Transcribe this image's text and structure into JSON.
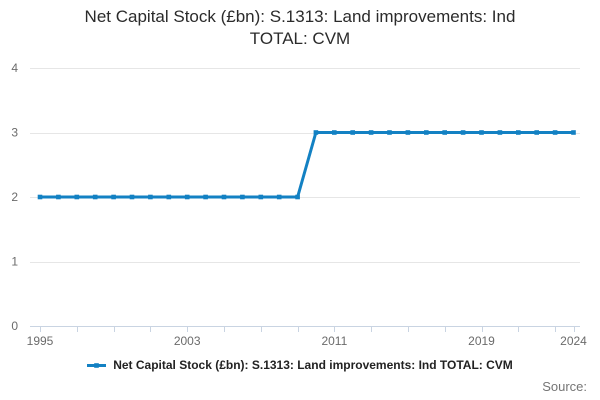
{
  "title": {
    "line1": "Net Capital Stock (£bn): S.1313: Land improvements: Ind",
    "line2": "TOTAL: CVM"
  },
  "legend": {
    "label": "Net Capital Stock (£bn): S.1313: Land improvements: Ind TOTAL: CVM"
  },
  "source": {
    "label": "Source:"
  },
  "colors": {
    "line": "#1381c3",
    "marker": "#1381c3",
    "grid": "#e6e6e6",
    "axis": "#c9d4e2",
    "tick_label": "#6b6b6b",
    "title_text": "#2b2b2b",
    "legend_text": "#222222",
    "source_text": "#757575"
  },
  "chart_data": {
    "type": "line",
    "title": "Net Capital Stock (£bn): S.1313: Land improvements: Ind TOTAL: CVM",
    "xlabel": "",
    "ylabel": "",
    "xlim": [
      1995,
      2024
    ],
    "ylim": [
      0,
      4
    ],
    "yticks": [
      0,
      1,
      2,
      3,
      4
    ],
    "xticks_labeled": [
      1995,
      2003,
      2011,
      2019,
      2024
    ],
    "xticks_minor": [
      1995,
      1997,
      1999,
      2001,
      2003,
      2005,
      2007,
      2009,
      2011,
      2013,
      2015,
      2017,
      2019,
      2021,
      2023,
      2024
    ],
    "grid": "horizontal",
    "legend_position": "bottom",
    "marker": "square",
    "series": [
      {
        "name": "Net Capital Stock (£bn): S.1313: Land improvements: Ind TOTAL: CVM",
        "x": [
          1995,
          1996,
          1997,
          1998,
          1999,
          2000,
          2001,
          2002,
          2003,
          2004,
          2005,
          2006,
          2007,
          2008,
          2009,
          2010,
          2011,
          2012,
          2013,
          2014,
          2015,
          2016,
          2017,
          2018,
          2019,
          2020,
          2021,
          2022,
          2023,
          2024
        ],
        "values": [
          2,
          2,
          2,
          2,
          2,
          2,
          2,
          2,
          2,
          2,
          2,
          2,
          2,
          2,
          2,
          3,
          3,
          3,
          3,
          3,
          3,
          3,
          3,
          3,
          3,
          3,
          3,
          3,
          3,
          3
        ]
      }
    ]
  }
}
